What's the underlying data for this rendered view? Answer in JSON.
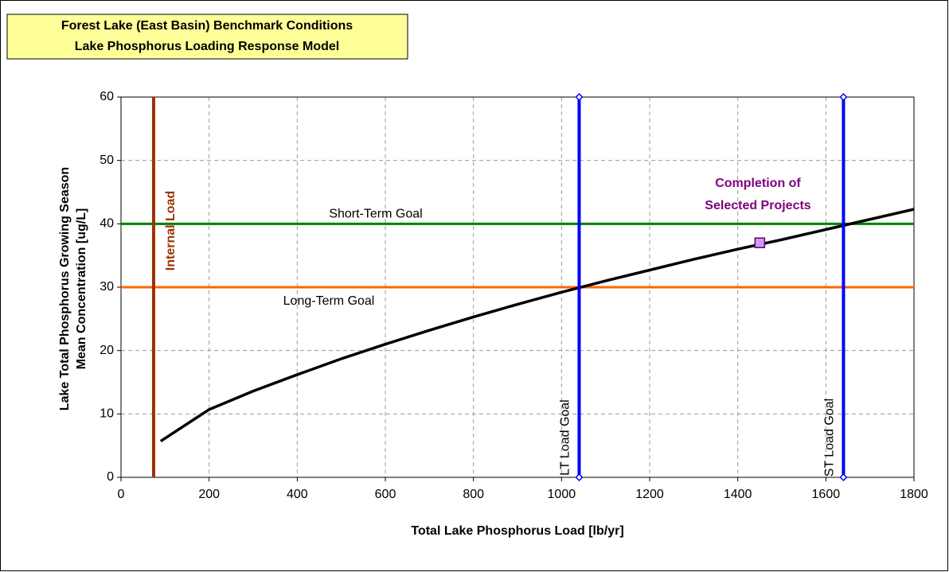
{
  "chart_data": {
    "type": "line",
    "title": "Forest Lake (East Basin) Benchmark Conditions",
    "subtitle": "Lake Phosphorus Loading Response Model",
    "x_label": "Total Lake Phosphorus Load [lb/yr]",
    "y_label": [
      "Lake Total Phosphorus Growing Season",
      "Mean Concentration [ug/L]"
    ],
    "xlim": [
      0,
      1800
    ],
    "xticks": [
      0,
      200,
      400,
      600,
      800,
      1000,
      1200,
      1400,
      1600,
      1800
    ],
    "ylim": [
      0,
      60
    ],
    "yticks": [
      0,
      10,
      20,
      30,
      40,
      50,
      60
    ],
    "grid": true,
    "series": [
      {
        "color": "#000000",
        "x": [
          90,
          200,
          300,
          400,
          500,
          600,
          700,
          800,
          900,
          1000,
          1100,
          1200,
          1300,
          1400,
          1500,
          1600,
          1700,
          1800
        ],
        "values": [
          5.7,
          10.7,
          13.6,
          16.2,
          18.7,
          21,
          23.2,
          25.3,
          27.3,
          29.2,
          31,
          32.7,
          34.4,
          36,
          37.5,
          39.1,
          40.7,
          42.3
        ]
      }
    ],
    "points": [
      {
        "label": [
          "Completion of",
          "Selected Projects"
        ],
        "x": 1450,
        "value": 37,
        "color": "#cc99ff"
      }
    ],
    "vlines": [
      {
        "label": "Internal Load",
        "x": 74,
        "color": "#993300"
      },
      {
        "label": "LT Load Goal",
        "x": 1040,
        "color": "#0000ff"
      },
      {
        "label": "ST Load Goal",
        "x": 1640,
        "color": "#0000ff"
      }
    ],
    "hlines": [
      {
        "label": "Short-Term Goal",
        "value": 40,
        "color": "#008000"
      },
      {
        "label": "Long-Term Goal",
        "value": 30,
        "color": "#ff6600"
      }
    ]
  }
}
